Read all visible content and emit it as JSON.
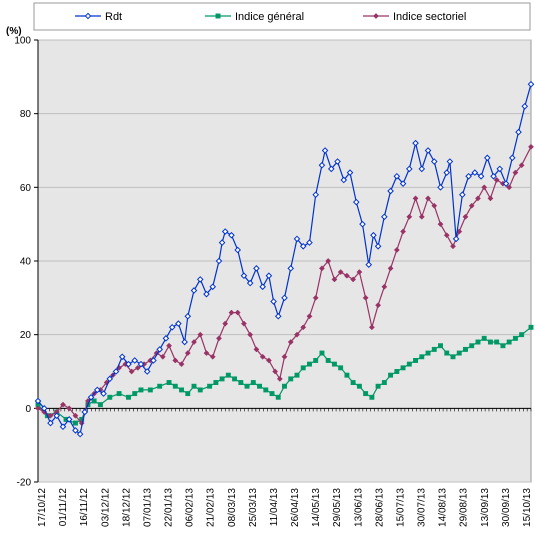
{
  "chart_data": {
    "type": "line",
    "title": "",
    "ylabel_unit": "(%)",
    "ylim": [
      -20,
      100
    ],
    "yticks": [
      -20,
      0,
      20,
      40,
      60,
      80,
      100
    ],
    "grid": "horizontal",
    "legend_position": "top",
    "x_tick_labels": [
      "17/10/12",
      "01/11/12",
      "16/11/12",
      "03/12/12",
      "18/12/12",
      "07/01/13",
      "22/01/13",
      "06/02/13",
      "21/02/13",
      "08/03/13",
      "25/03/13",
      "11/04/13",
      "26/04/13",
      "14/05/13",
      "29/05/13",
      "13/06/13",
      "28/06/13",
      "15/07/13",
      "30/07/13",
      "14/08/13",
      "29/08/13",
      "13/09/13",
      "30/09/13",
      "15/10/13"
    ],
    "x_index_range": [
      0,
      258
    ],
    "series": [
      {
        "name": "Rdt",
        "color": "#0033cc",
        "marker": "diamond-open",
        "points": [
          [
            0,
            2
          ],
          [
            4,
            0
          ],
          [
            8,
            -4
          ],
          [
            12,
            -2
          ],
          [
            16,
            -5
          ],
          [
            20,
            -3
          ],
          [
            24,
            -6
          ],
          [
            27,
            -7
          ],
          [
            30,
            -1
          ],
          [
            34,
            3
          ],
          [
            38,
            5
          ],
          [
            42,
            4
          ],
          [
            46,
            8
          ],
          [
            50,
            10
          ],
          [
            54,
            14
          ],
          [
            58,
            12
          ],
          [
            62,
            13
          ],
          [
            66,
            12
          ],
          [
            70,
            10
          ],
          [
            74,
            13
          ],
          [
            78,
            16
          ],
          [
            82,
            19
          ],
          [
            86,
            22
          ],
          [
            90,
            23
          ],
          [
            94,
            18
          ],
          [
            96,
            25
          ],
          [
            100,
            32
          ],
          [
            104,
            35
          ],
          [
            108,
            31
          ],
          [
            112,
            33
          ],
          [
            116,
            40
          ],
          [
            118,
            45
          ],
          [
            120,
            48
          ],
          [
            124,
            47
          ],
          [
            128,
            43
          ],
          [
            132,
            36
          ],
          [
            136,
            34
          ],
          [
            140,
            38
          ],
          [
            144,
            33
          ],
          [
            148,
            36
          ],
          [
            151,
            29
          ],
          [
            154,
            25
          ],
          [
            158,
            30
          ],
          [
            162,
            38
          ],
          [
            166,
            46
          ],
          [
            170,
            44
          ],
          [
            174,
            45
          ],
          [
            178,
            58
          ],
          [
            182,
            66
          ],
          [
            184,
            70
          ],
          [
            188,
            65
          ],
          [
            192,
            67
          ],
          [
            196,
            62
          ],
          [
            200,
            64
          ],
          [
            204,
            56
          ],
          [
            208,
            50
          ],
          [
            212,
            39
          ],
          [
            215,
            47
          ],
          [
            218,
            44
          ],
          [
            222,
            52
          ],
          [
            226,
            59
          ],
          [
            230,
            63
          ],
          [
            234,
            61
          ],
          [
            238,
            65
          ],
          [
            242,
            72
          ],
          [
            246,
            65
          ],
          [
            250,
            70
          ],
          [
            254,
            67
          ],
          [
            258,
            60
          ],
          [
            262,
            64
          ],
          [
            264,
            67
          ],
          [
            268,
            46
          ],
          [
            272,
            58
          ],
          [
            276,
            63
          ],
          [
            280,
            64
          ],
          [
            284,
            63
          ],
          [
            288,
            68
          ],
          [
            292,
            63
          ],
          [
            296,
            65
          ],
          [
            300,
            61
          ],
          [
            304,
            68
          ],
          [
            308,
            75
          ],
          [
            312,
            82
          ],
          [
            316,
            88
          ]
        ]
      },
      {
        "name": "Indice général",
        "color": "#009966",
        "marker": "square-filled",
        "points": [
          [
            0,
            1
          ],
          [
            6,
            -2
          ],
          [
            12,
            -1
          ],
          [
            18,
            -3
          ],
          [
            24,
            -4
          ],
          [
            28,
            -3
          ],
          [
            32,
            1
          ],
          [
            36,
            2
          ],
          [
            40,
            1
          ],
          [
            46,
            3
          ],
          [
            52,
            4
          ],
          [
            58,
            3
          ],
          [
            62,
            4
          ],
          [
            66,
            5
          ],
          [
            72,
            5
          ],
          [
            78,
            6
          ],
          [
            84,
            7
          ],
          [
            88,
            6
          ],
          [
            92,
            5
          ],
          [
            96,
            4
          ],
          [
            100,
            6
          ],
          [
            104,
            5
          ],
          [
            110,
            6
          ],
          [
            114,
            7
          ],
          [
            118,
            8
          ],
          [
            122,
            9
          ],
          [
            126,
            8
          ],
          [
            130,
            7
          ],
          [
            134,
            6
          ],
          [
            138,
            7
          ],
          [
            142,
            6
          ],
          [
            146,
            5
          ],
          [
            150,
            4
          ],
          [
            154,
            3
          ],
          [
            158,
            6
          ],
          [
            162,
            8
          ],
          [
            166,
            9
          ],
          [
            170,
            11
          ],
          [
            174,
            12
          ],
          [
            178,
            13
          ],
          [
            182,
            15
          ],
          [
            186,
            13
          ],
          [
            190,
            12
          ],
          [
            194,
            11
          ],
          [
            198,
            9
          ],
          [
            202,
            7
          ],
          [
            206,
            6
          ],
          [
            210,
            4
          ],
          [
            214,
            3
          ],
          [
            218,
            6
          ],
          [
            222,
            7
          ],
          [
            226,
            9
          ],
          [
            230,
            10
          ],
          [
            234,
            11
          ],
          [
            238,
            12
          ],
          [
            242,
            13
          ],
          [
            246,
            14
          ],
          [
            250,
            15
          ],
          [
            254,
            16
          ],
          [
            258,
            17
          ],
          [
            262,
            15
          ],
          [
            266,
            14
          ],
          [
            270,
            15
          ],
          [
            274,
            16
          ],
          [
            278,
            17
          ],
          [
            282,
            18
          ],
          [
            286,
            19
          ],
          [
            290,
            18
          ],
          [
            294,
            18
          ],
          [
            298,
            17
          ],
          [
            302,
            18
          ],
          [
            306,
            19
          ],
          [
            310,
            20
          ],
          [
            316,
            22
          ]
        ]
      },
      {
        "name": "Indice sectoriel",
        "color": "#993366",
        "marker": "diamond-filled",
        "points": [
          [
            0,
            0
          ],
          [
            4,
            -1
          ],
          [
            8,
            -2
          ],
          [
            12,
            -1
          ],
          [
            16,
            1
          ],
          [
            20,
            0
          ],
          [
            24,
            -2
          ],
          [
            28,
            -4
          ],
          [
            32,
            2
          ],
          [
            36,
            4
          ],
          [
            40,
            5
          ],
          [
            44,
            7
          ],
          [
            48,
            9
          ],
          [
            52,
            11
          ],
          [
            56,
            12
          ],
          [
            60,
            10
          ],
          [
            64,
            11
          ],
          [
            68,
            12
          ],
          [
            72,
            13
          ],
          [
            76,
            15
          ],
          [
            80,
            14
          ],
          [
            84,
            17
          ],
          [
            88,
            13
          ],
          [
            92,
            12
          ],
          [
            96,
            15
          ],
          [
            100,
            18
          ],
          [
            104,
            20
          ],
          [
            108,
            15
          ],
          [
            112,
            14
          ],
          [
            116,
            19
          ],
          [
            120,
            23
          ],
          [
            124,
            26
          ],
          [
            128,
            26
          ],
          [
            132,
            23
          ],
          [
            136,
            20
          ],
          [
            140,
            16
          ],
          [
            144,
            14
          ],
          [
            148,
            13
          ],
          [
            152,
            10
          ],
          [
            155,
            8
          ],
          [
            158,
            14
          ],
          [
            162,
            18
          ],
          [
            166,
            20
          ],
          [
            170,
            22
          ],
          [
            174,
            25
          ],
          [
            178,
            30
          ],
          [
            182,
            38
          ],
          [
            186,
            40
          ],
          [
            190,
            35
          ],
          [
            194,
            37
          ],
          [
            198,
            36
          ],
          [
            202,
            35
          ],
          [
            206,
            37
          ],
          [
            210,
            30
          ],
          [
            214,
            22
          ],
          [
            218,
            28
          ],
          [
            222,
            33
          ],
          [
            226,
            38
          ],
          [
            230,
            43
          ],
          [
            234,
            48
          ],
          [
            238,
            52
          ],
          [
            242,
            57
          ],
          [
            246,
            52
          ],
          [
            250,
            57
          ],
          [
            254,
            55
          ],
          [
            258,
            50
          ],
          [
            262,
            47
          ],
          [
            266,
            44
          ],
          [
            270,
            48
          ],
          [
            274,
            52
          ],
          [
            278,
            55
          ],
          [
            282,
            57
          ],
          [
            286,
            60
          ],
          [
            290,
            57
          ],
          [
            294,
            62
          ],
          [
            298,
            61
          ],
          [
            302,
            60
          ],
          [
            306,
            64
          ],
          [
            310,
            66
          ],
          [
            316,
            71
          ]
        ]
      }
    ]
  }
}
